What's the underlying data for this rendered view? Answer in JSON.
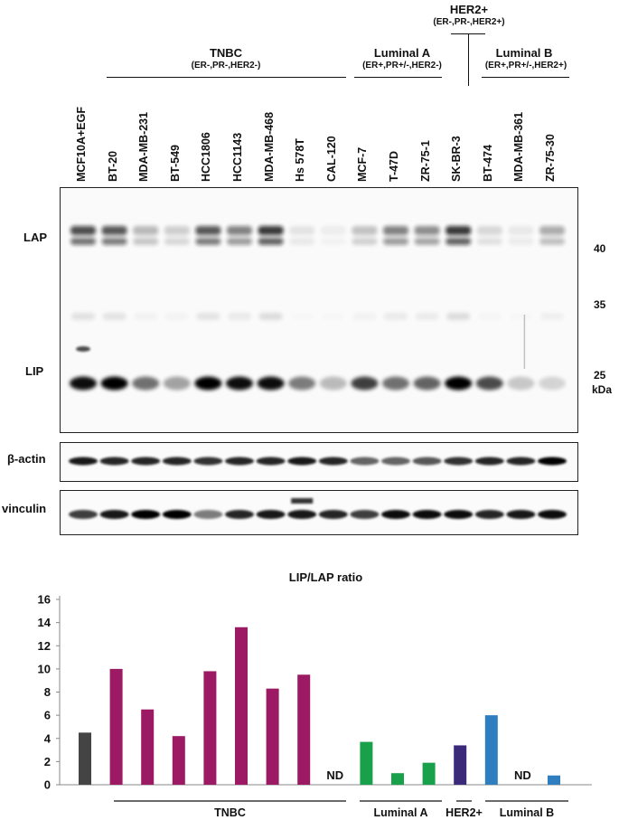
{
  "lanes": [
    "MCF10A+EGF",
    "BT-20",
    "MDA-MB-231",
    "BT-549",
    "HCC1806",
    "HCC1143",
    "MDA-MB-468",
    "Hs 578T",
    "CAL-120",
    "MCF-7",
    "T-47D",
    "ZR-75-1",
    "SK-BR-3",
    "BT-474",
    "MDA-MB-361",
    "ZR-75-30"
  ],
  "groups": {
    "tnbc": {
      "title": "TNBC",
      "sub": "(ER-,PR-,HER2-)"
    },
    "luminal_a": {
      "title": "Luminal A",
      "sub": "(ER+,PR+/-,HER2-)"
    },
    "her2": {
      "title": "HER2+",
      "sub": "(ER-,PR-,HER2+)"
    },
    "luminal_b": {
      "title": "Luminal B",
      "sub": "(ER+,PR+/-,HER2+)"
    }
  },
  "blot": {
    "lap_label": "LAP",
    "lip_label": "LIP",
    "actin_label": "β-actin",
    "vinculin_label": "vinculin",
    "markers": [
      "40",
      "35",
      "25"
    ],
    "unit": "kDa"
  },
  "colors": {
    "control": "#444444",
    "tnbc": "#9c1a63",
    "luminal_a": "#18a14a",
    "her2": "#3a2a79",
    "luminal_b": "#2e7ec0"
  },
  "chart_data": {
    "type": "bar",
    "title": "LIP/LAP ratio",
    "ylim": [
      0,
      16
    ],
    "yticks": [
      0,
      2,
      4,
      6,
      8,
      10,
      12,
      14,
      16
    ],
    "categories": [
      "MCF10A+EGF",
      "BT-20",
      "MDA-MB-231",
      "BT-549",
      "HCC1806",
      "HCC1143",
      "MDA-MB-468",
      "Hs 578T",
      "CAL-120",
      "MCF-7",
      "T-47D",
      "ZR-75-1",
      "SK-BR-3",
      "BT-474",
      "MDA-MB-361",
      "ZR-75-30"
    ],
    "values": [
      4.5,
      10.0,
      6.5,
      4.2,
      9.8,
      13.6,
      8.3,
      9.5,
      null,
      3.7,
      1.0,
      1.9,
      3.4,
      6.0,
      null,
      0.8
    ],
    "groups": [
      "control",
      "tnbc",
      "tnbc",
      "tnbc",
      "tnbc",
      "tnbc",
      "tnbc",
      "tnbc",
      "tnbc",
      "luminal_a",
      "luminal_a",
      "luminal_a",
      "her2",
      "luminal_b",
      "luminal_b",
      "luminal_b"
    ],
    "nd_label": "ND",
    "group_labels": [
      "TNBC",
      "Luminal A",
      "HER2+",
      "Luminal B"
    ]
  }
}
